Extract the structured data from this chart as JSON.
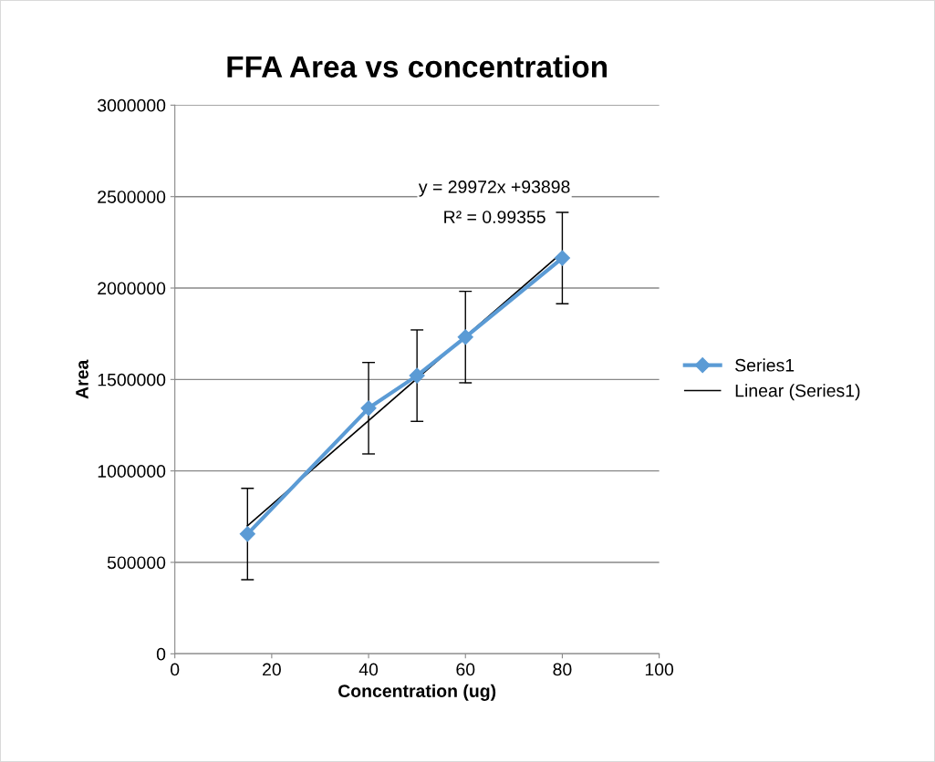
{
  "chart_data": {
    "type": "line",
    "title": "FFA Area vs concentration",
    "xlabel": "Concentration (ug)",
    "ylabel": "Area",
    "x": [
      15,
      40,
      50,
      60,
      80
    ],
    "series": [
      {
        "name": "Series1",
        "color": "#5b9bd5",
        "values": [
          655000,
          1343000,
          1521000,
          1732000,
          2164000
        ],
        "errors": [
          250000,
          250000,
          250000,
          250000,
          250000
        ],
        "marker": "diamond"
      },
      {
        "name": "Linear (Series1)",
        "color": "#000000",
        "x": [
          15,
          80
        ],
        "values": [
          700000,
          2195000
        ],
        "marker": "none"
      }
    ],
    "annotations": [
      "y = 29972x +93898",
      "R² = 0.99355"
    ],
    "xlim": [
      0,
      100
    ],
    "xticks": [
      0,
      20,
      40,
      60,
      80,
      100
    ],
    "ylim": [
      0,
      3000000
    ],
    "yticks": [
      0,
      500000,
      1000000,
      1500000,
      2000000,
      2500000,
      3000000
    ],
    "grid": "y",
    "legend": "right",
    "line_style": "solid"
  }
}
